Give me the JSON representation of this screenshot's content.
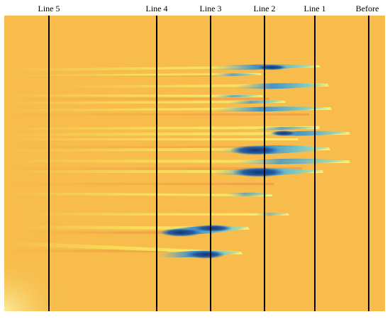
{
  "lines": [
    {
      "label": "Line 5"
    },
    {
      "label": "Line 4"
    },
    {
      "label": "Line 3"
    },
    {
      "label": "Line 2"
    },
    {
      "label": "Line 1"
    },
    {
      "label": "Before"
    }
  ],
  "colors": {
    "background": "#F7BC4B",
    "streak_light": "#F6E35C",
    "streak_warm": "#EFA044",
    "plume_light": "#7FC7C2",
    "plume_mid": "#2E7FC6",
    "plume_dark": "#14336F",
    "line": "#000000"
  }
}
